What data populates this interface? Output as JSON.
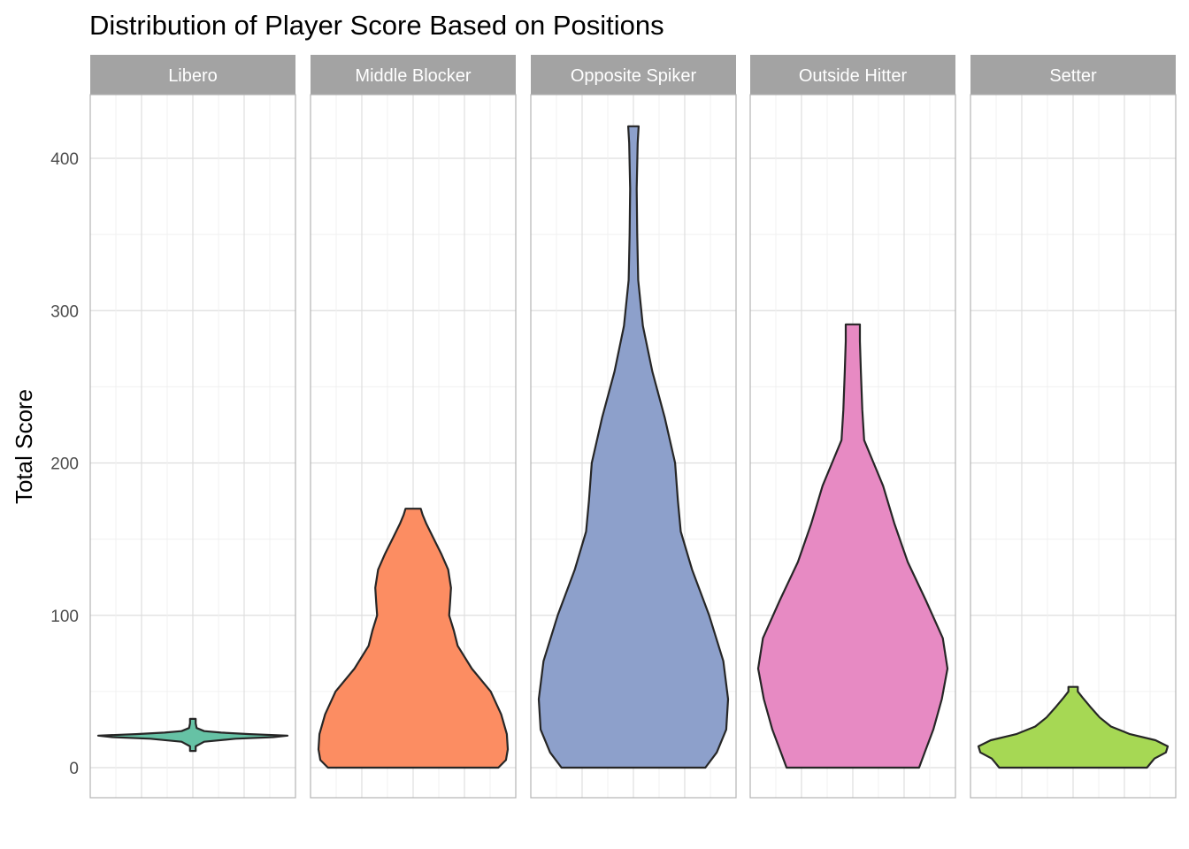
{
  "chart_data": {
    "type": "violin",
    "title": "Distribution of Player Score Based on Positions",
    "xlabel": "",
    "ylabel": "Total Score",
    "ylim": [
      -20,
      440
    ],
    "yticks": [
      0,
      100,
      200,
      300,
      400
    ],
    "grid": true,
    "facets": [
      {
        "name": "Libero",
        "color": "#66c2a5",
        "range": [
          11,
          32
        ],
        "profile": [
          [
            11,
            0.03
          ],
          [
            14,
            0.03
          ],
          [
            17,
            0.12
          ],
          [
            19,
            0.45
          ],
          [
            20,
            0.85
          ],
          [
            21,
            1.0
          ],
          [
            22,
            0.6
          ],
          [
            23,
            0.3
          ],
          [
            24,
            0.12
          ],
          [
            26,
            0.04
          ],
          [
            29,
            0.03
          ],
          [
            32,
            0.03
          ]
        ]
      },
      {
        "name": "Middle Blocker",
        "color": "#fc8d62",
        "range": [
          0,
          170
        ],
        "profile": [
          [
            0,
            0.9
          ],
          [
            5,
            0.98
          ],
          [
            12,
            1.0
          ],
          [
            22,
            0.99
          ],
          [
            35,
            0.93
          ],
          [
            50,
            0.82
          ],
          [
            65,
            0.62
          ],
          [
            80,
            0.47
          ],
          [
            90,
            0.43
          ],
          [
            100,
            0.38
          ],
          [
            108,
            0.39
          ],
          [
            118,
            0.4
          ],
          [
            130,
            0.37
          ],
          [
            140,
            0.3
          ],
          [
            150,
            0.22
          ],
          [
            160,
            0.14
          ],
          [
            166,
            0.1
          ],
          [
            170,
            0.08
          ]
        ]
      },
      {
        "name": "Opposite Spiker",
        "color": "#8da0cb",
        "range": [
          0,
          421
        ],
        "profile": [
          [
            0,
            0.76
          ],
          [
            10,
            0.88
          ],
          [
            25,
            0.98
          ],
          [
            45,
            1.0
          ],
          [
            70,
            0.95
          ],
          [
            100,
            0.8
          ],
          [
            130,
            0.62
          ],
          [
            155,
            0.5
          ],
          [
            175,
            0.47
          ],
          [
            200,
            0.44
          ],
          [
            230,
            0.33
          ],
          [
            260,
            0.2
          ],
          [
            290,
            0.1
          ],
          [
            320,
            0.05
          ],
          [
            350,
            0.04
          ],
          [
            380,
            0.035
          ],
          [
            410,
            0.045
          ],
          [
            421,
            0.055
          ]
        ]
      },
      {
        "name": "Outside Hitter",
        "color": "#e78ac3",
        "range": [
          0,
          291
        ],
        "profile": [
          [
            0,
            0.7
          ],
          [
            10,
            0.76
          ],
          [
            25,
            0.85
          ],
          [
            45,
            0.94
          ],
          [
            65,
            1.0
          ],
          [
            85,
            0.95
          ],
          [
            110,
            0.77
          ],
          [
            135,
            0.58
          ],
          [
            160,
            0.44
          ],
          [
            185,
            0.32
          ],
          [
            200,
            0.22
          ],
          [
            215,
            0.12
          ],
          [
            235,
            0.1
          ],
          [
            260,
            0.085
          ],
          [
            280,
            0.075
          ],
          [
            291,
            0.075
          ]
        ]
      },
      {
        "name": "Setter",
        "color": "#a6d854",
        "range": [
          0,
          53
        ],
        "profile": [
          [
            0,
            0.78
          ],
          [
            3,
            0.82
          ],
          [
            6,
            0.86
          ],
          [
            10,
            0.98
          ],
          [
            14,
            1.0
          ],
          [
            18,
            0.87
          ],
          [
            22,
            0.6
          ],
          [
            27,
            0.4
          ],
          [
            33,
            0.28
          ],
          [
            40,
            0.18
          ],
          [
            46,
            0.1
          ],
          [
            50,
            0.05
          ],
          [
            53,
            0.05
          ]
        ]
      }
    ]
  }
}
